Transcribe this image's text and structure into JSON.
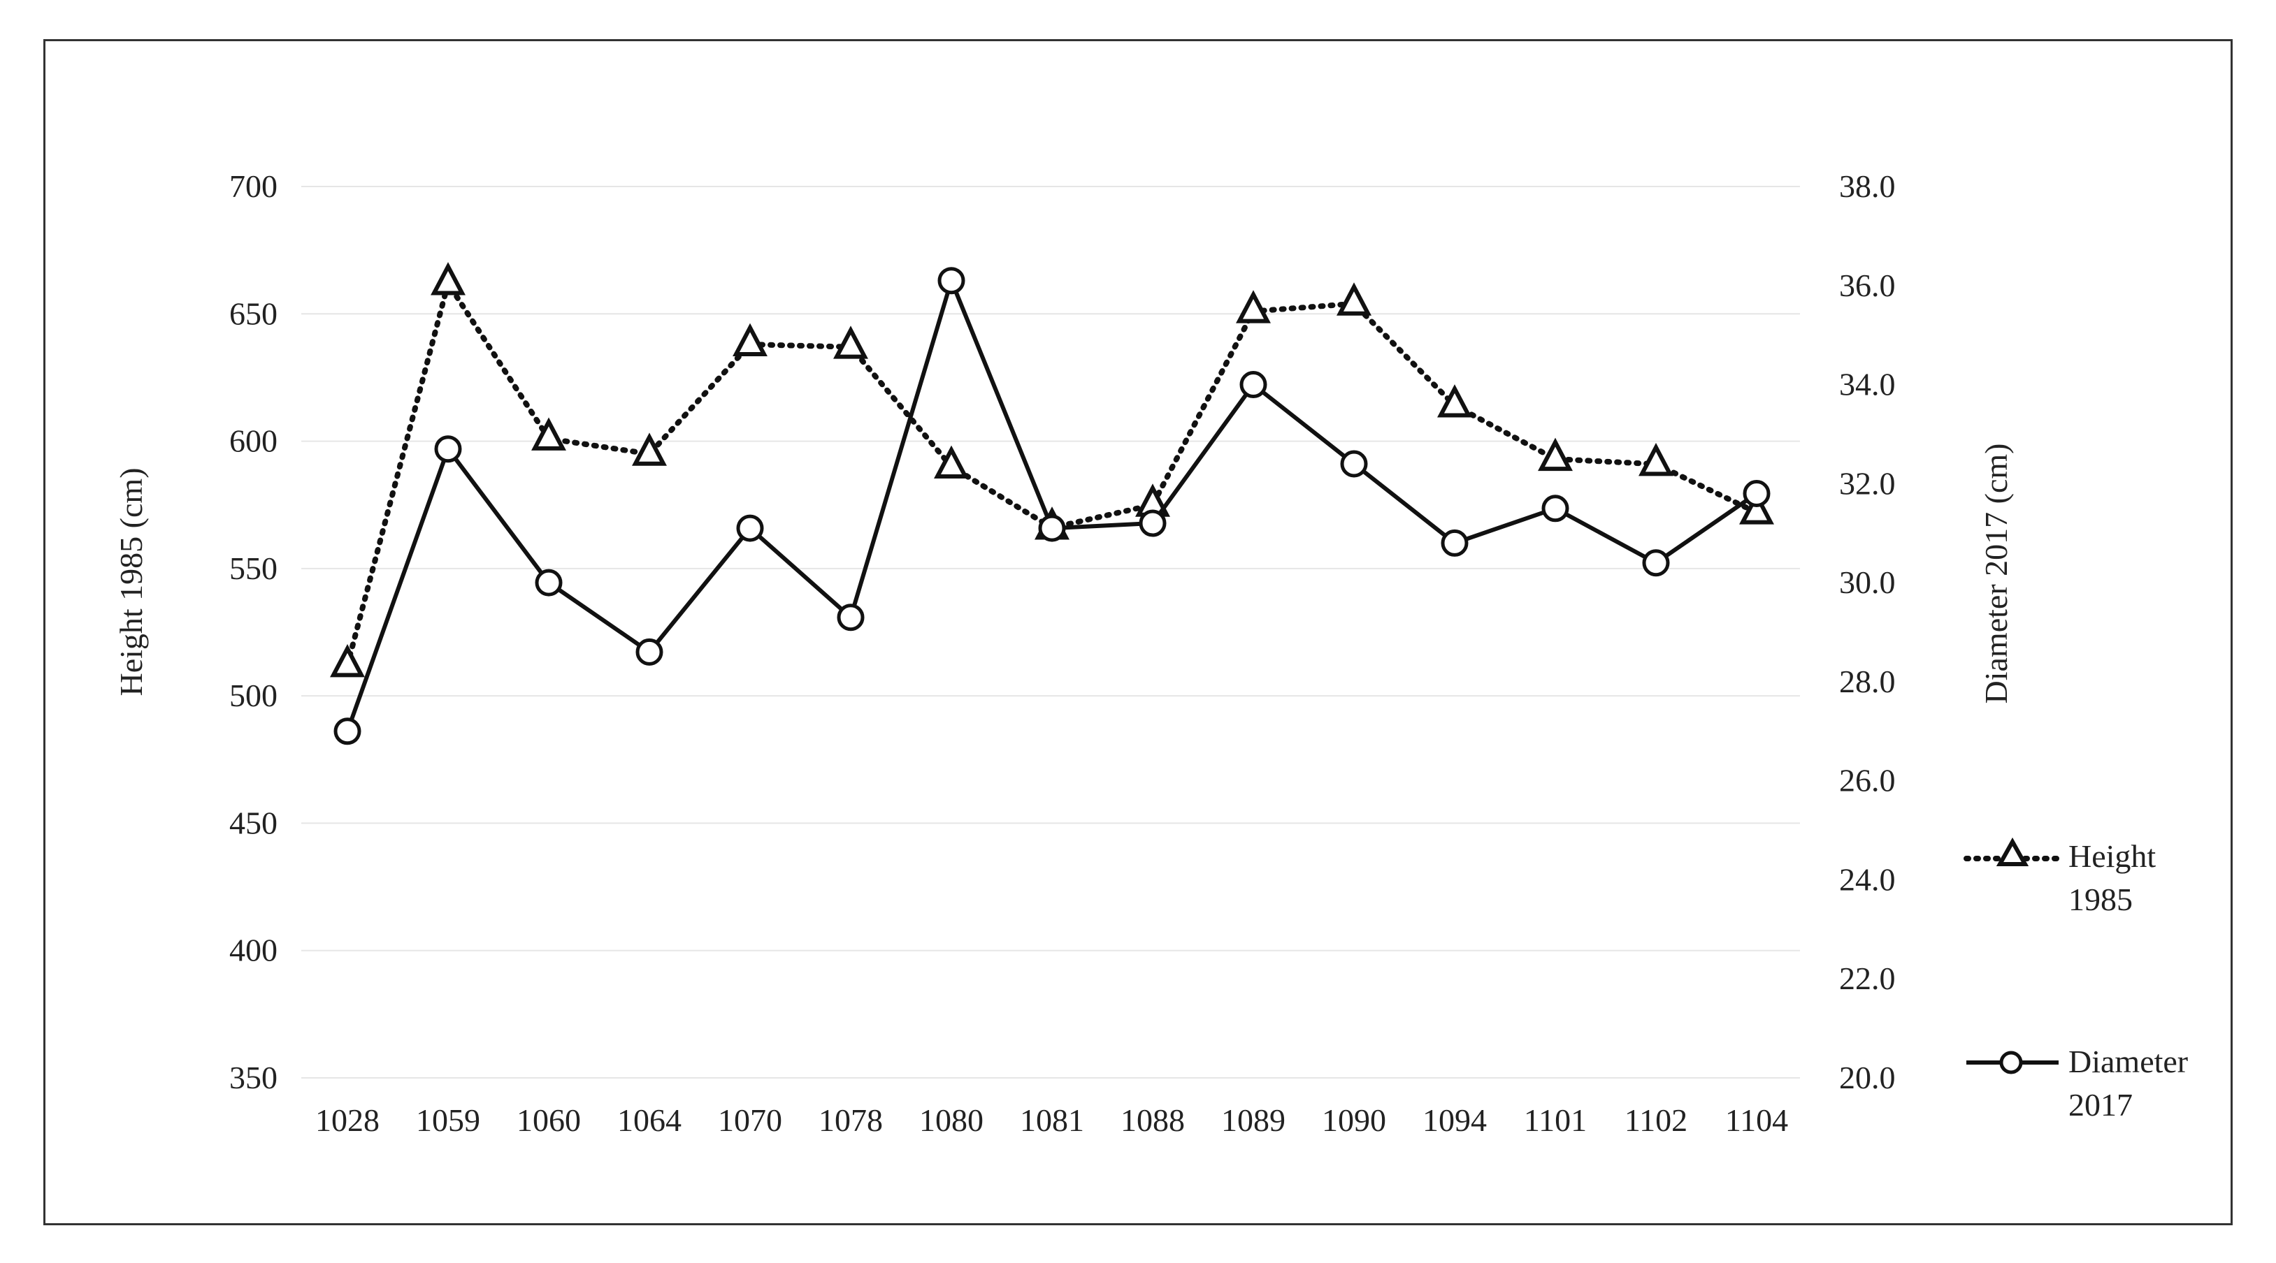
{
  "chart_data": {
    "type": "line",
    "categories": [
      "1028",
      "1059",
      "1060",
      "1064",
      "1070",
      "1078",
      "1080",
      "1081",
      "1088",
      "1089",
      "1090",
      "1094",
      "1101",
      "1102",
      "1104"
    ],
    "series": [
      {
        "name": "Height 1985",
        "axis": "left",
        "line_style": "dotted",
        "marker": "triangle",
        "values": [
          512,
          662,
          601,
          595,
          638,
          637,
          590,
          566,
          575,
          651,
          654,
          614,
          593,
          591,
          572
        ]
      },
      {
        "name": "Diameter 2017",
        "axis": "right",
        "line_style": "solid",
        "marker": "circle",
        "values": [
          27.0,
          32.7,
          30.0,
          28.6,
          31.1,
          29.3,
          36.1,
          31.1,
          31.2,
          34.0,
          32.4,
          30.8,
          31.5,
          30.4,
          31.8
        ]
      }
    ],
    "y_left": {
      "label": "Height 1985 (cm)",
      "ylim": [
        350,
        700
      ],
      "ticks": [
        "350",
        "400",
        "450",
        "500",
        "550",
        "600",
        "650",
        "700"
      ]
    },
    "y_right": {
      "label": "Diameter 2017 (cm)",
      "ylim": [
        20.0,
        38.0
      ],
      "ticks": [
        "20.0",
        "22.0",
        "24.0",
        "26.0",
        "28.0",
        "30.0",
        "32.0",
        "34.0",
        "36.0",
        "38.0"
      ]
    },
    "legend": {
      "placement": "right",
      "items": [
        {
          "line1": "Height",
          "line2": "1985"
        },
        {
          "line1": "Diameter",
          "line2": "2017"
        }
      ]
    },
    "grid": true,
    "colors": {
      "line": "#111111",
      "grid": "#e6e6e6",
      "marker_fill": "#ffffff",
      "frame": "#333333"
    }
  }
}
